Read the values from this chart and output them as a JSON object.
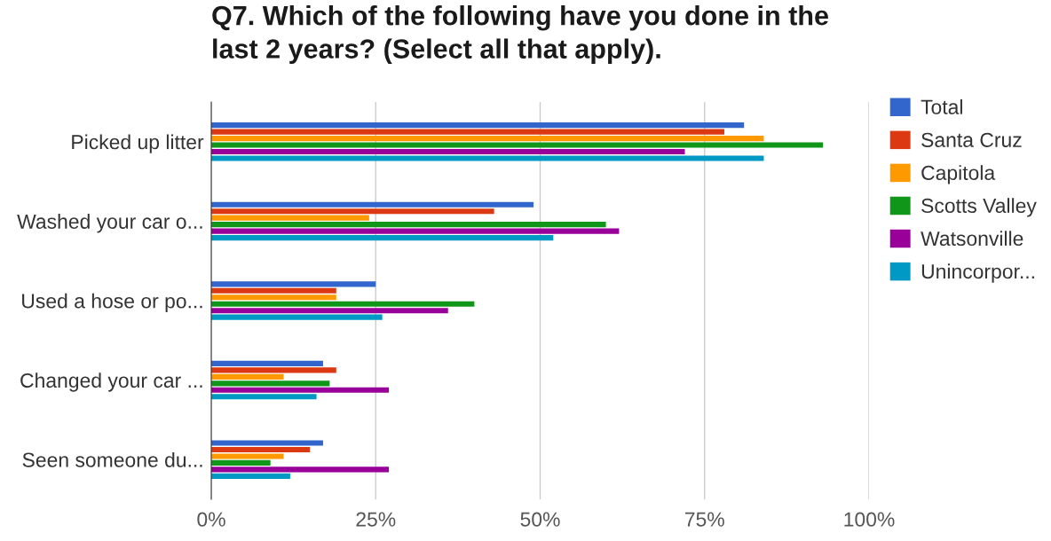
{
  "chart_data": {
    "type": "bar",
    "orientation": "horizontal",
    "title": "Q7. Which of the following have you done in the\nlast 2 years? (Select all that apply).",
    "categories": [
      "Picked up litter",
      "Washed your car o...",
      "Used a hose or po...",
      "Changed your car ...",
      "Seen someone du..."
    ],
    "series": [
      {
        "name": "Total",
        "color": "#3366cc",
        "values": [
          81,
          49,
          25,
          17,
          17
        ]
      },
      {
        "name": "Santa Cruz",
        "color": "#dc3912",
        "values": [
          78,
          43,
          19,
          19,
          15
        ]
      },
      {
        "name": "Capitola",
        "color": "#ff9900",
        "values": [
          84,
          24,
          19,
          11,
          11
        ]
      },
      {
        "name": "Scotts Valley",
        "color": "#109618",
        "values": [
          93,
          60,
          40,
          18,
          9
        ]
      },
      {
        "name": "Watsonville",
        "color": "#990099",
        "values": [
          72,
          62,
          36,
          27,
          27
        ]
      },
      {
        "name": "Unincorpor...",
        "color": "#0099c6",
        "values": [
          84,
          52,
          26,
          16,
          12
        ]
      }
    ],
    "xlim": [
      0,
      100
    ],
    "xticks": [
      {
        "value": 0,
        "label": "0%"
      },
      {
        "value": 25,
        "label": "25%"
      },
      {
        "value": 50,
        "label": "50%"
      },
      {
        "value": 75,
        "label": "75%"
      },
      {
        "value": 100,
        "label": "100%"
      }
    ],
    "grid": "x",
    "legend": "right"
  }
}
